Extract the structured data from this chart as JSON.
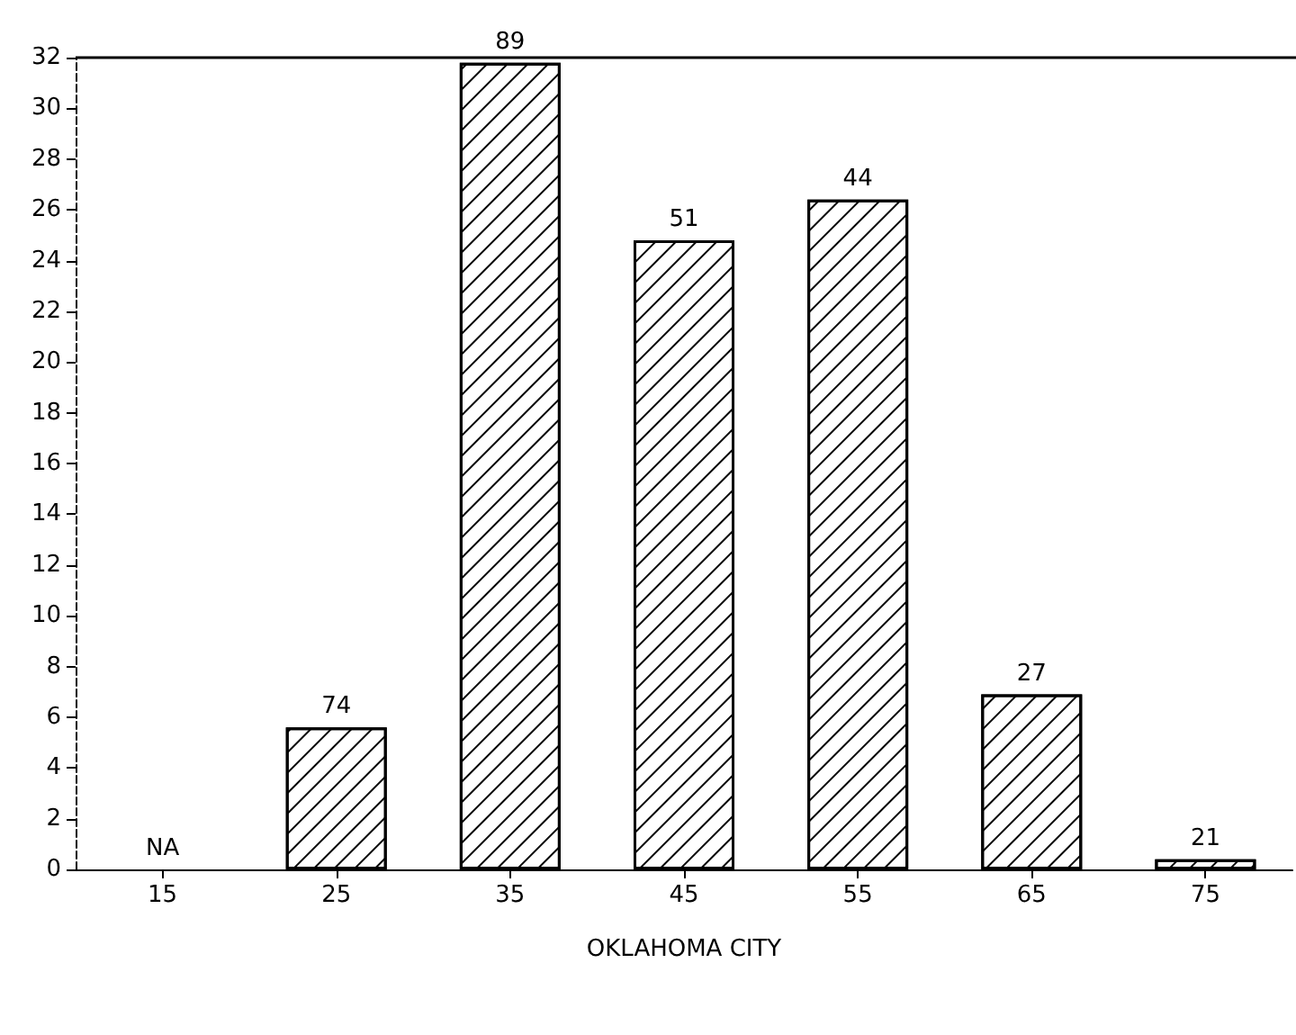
{
  "chart_data": {
    "type": "bar",
    "xlabel": "OKLAHOMA CITY",
    "categories": [
      "15",
      "25",
      "35",
      "45",
      "55",
      "65",
      "75"
    ],
    "values": [
      null,
      5.6,
      31.8,
      24.8,
      26.4,
      6.9,
      0.4
    ],
    "annotations": [
      "NA",
      {
        "text": "74",
        "x": "25",
        "y": 5.6
      },
      {
        "text": "89",
        "x": "35",
        "y": 31.8
      },
      {
        "text": "51",
        "x": "45",
        "y": 24.8
      },
      {
        "text": "44",
        "x": "55",
        "y": 26.4
      },
      {
        "text": "27",
        "x": "65",
        "y": 6.9
      },
      {
        "text": "21",
        "x": "75",
        "y": 0.4
      }
    ],
    "color": "#000000",
    "ylim": [
      0,
      32
    ],
    "yticks": [
      0,
      2,
      4,
      6,
      8,
      10,
      12,
      14,
      16,
      18,
      20,
      22,
      24,
      26,
      28,
      30,
      32
    ],
    "grid": false
  }
}
